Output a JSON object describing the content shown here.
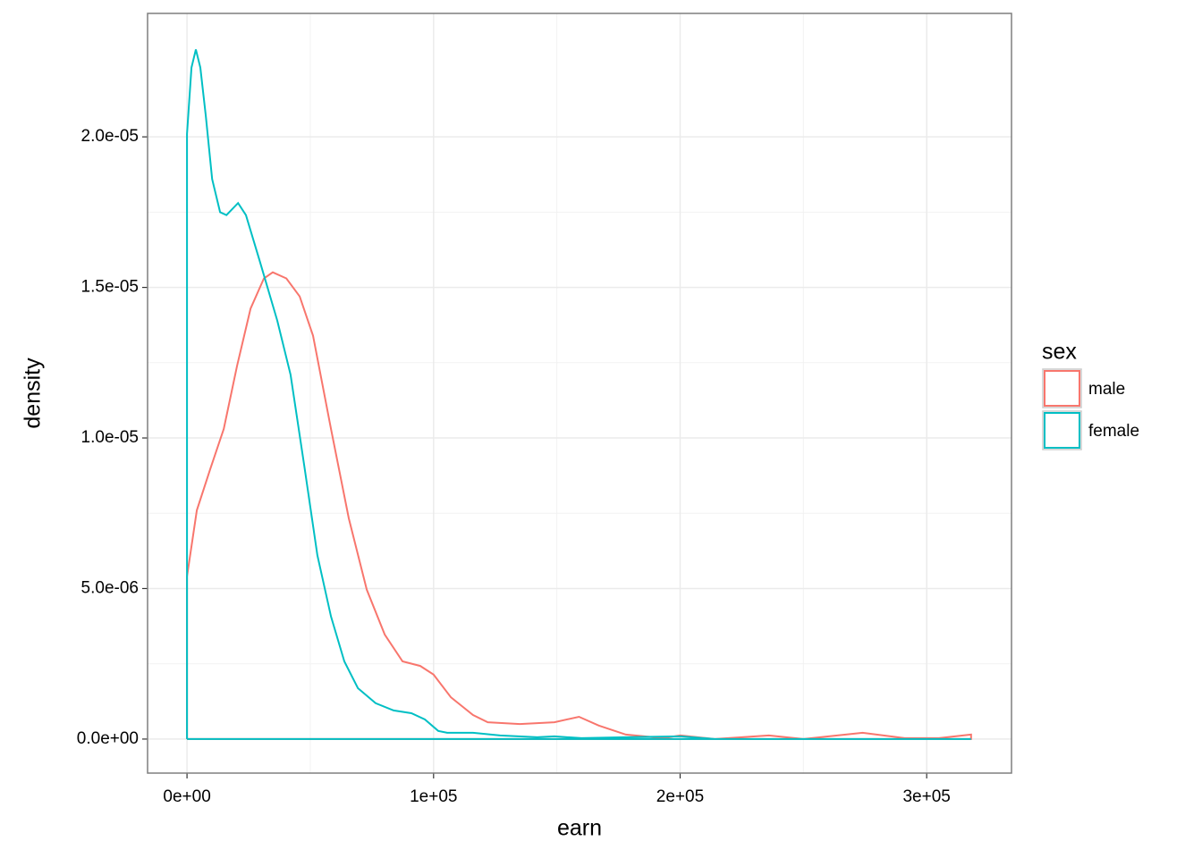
{
  "chart_data": {
    "type": "line",
    "xlabel": "earn",
    "ylabel": "density",
    "legend_title": "sex",
    "legend": "right",
    "grid": true,
    "xlim": [
      -16000,
      334400
    ],
    "ylim": [
      -1.13e-06,
      2.41e-05
    ],
    "xticks": [
      {
        "value": 0,
        "label": "0e+00"
      },
      {
        "value": 100000,
        "label": "1e+05"
      },
      {
        "value": 200000,
        "label": "2e+05"
      },
      {
        "value": 300000,
        "label": "3e+05"
      }
    ],
    "yticks": [
      {
        "value": 0,
        "label": "0.0e+00"
      },
      {
        "value": 5e-06,
        "label": "5.0e-06"
      },
      {
        "value": 1e-05,
        "label": "1.0e-05"
      },
      {
        "value": 1.5e-05,
        "label": "1.5e-05"
      },
      {
        "value": 2e-05,
        "label": "2.0e-05"
      }
    ],
    "series": [
      {
        "name": "male",
        "color": "#F8766D",
        "x": [
          0,
          0,
          4000,
          9400,
          14900,
          20300,
          25800,
          31200,
          34800,
          40300,
          45700,
          51100,
          58400,
          65600,
          72900,
          80200,
          87400,
          94600,
          100000,
          107000,
          116000,
          122000,
          135000,
          149000,
          159000,
          167000,
          178000,
          193000,
          200000,
          214000,
          236000,
          250000,
          274000,
          291000,
          305000,
          318000,
          318000,
          0
        ],
        "values": [
          0,
          5.4e-06,
          7.6e-06,
          8.96e-06,
          1.03e-05,
          1.24e-05,
          1.43e-05,
          1.53e-05,
          1.55e-05,
          1.53e-05,
          1.47e-05,
          1.34e-05,
          1.03e-05,
          7.33e-06,
          4.96e-06,
          3.47e-06,
          2.58e-06,
          2.43e-06,
          2.14e-06,
          1.39e-06,
          8e-07,
          5.6e-07,
          5e-07,
          5.6e-07,
          7.4e-07,
          4.5e-07,
          1.5e-07,
          3e-08,
          1.2e-07,
          0,
          1.2e-07,
          0,
          2.1e-07,
          3e-08,
          3e-08,
          1.5e-07,
          0,
          0
        ]
      },
      {
        "name": "female",
        "color": "#00BFC4",
        "x": [
          0,
          0,
          1800,
          3600,
          5400,
          7600,
          10200,
          13400,
          16000,
          20700,
          23900,
          29400,
          36600,
          42000,
          47500,
          52900,
          58400,
          63800,
          69300,
          76500,
          83800,
          91000,
          96500,
          101900,
          105500,
          116000,
          127000,
          142000,
          149000,
          160000,
          178000,
          200000,
          214000,
          250000,
          287000,
          318000,
          0
        ],
        "values": [
          0,
          2.01e-05,
          2.23e-05,
          2.29e-05,
          2.23e-05,
          2.07e-05,
          1.86e-05,
          1.75e-05,
          1.74e-05,
          1.78e-05,
          1.74e-05,
          1.59e-05,
          1.39e-05,
          1.21e-05,
          9.1e-06,
          6.1e-06,
          4.07e-06,
          2.58e-06,
          1.69e-06,
          1.19e-06,
          9.5e-07,
          8.6e-07,
          6.5e-07,
          2.7e-07,
          2.1e-07,
          2.1e-07,
          1.2e-07,
          6e-08,
          9e-08,
          3e-08,
          6e-08,
          9e-08,
          0,
          0,
          0,
          0,
          0
        ]
      }
    ]
  }
}
